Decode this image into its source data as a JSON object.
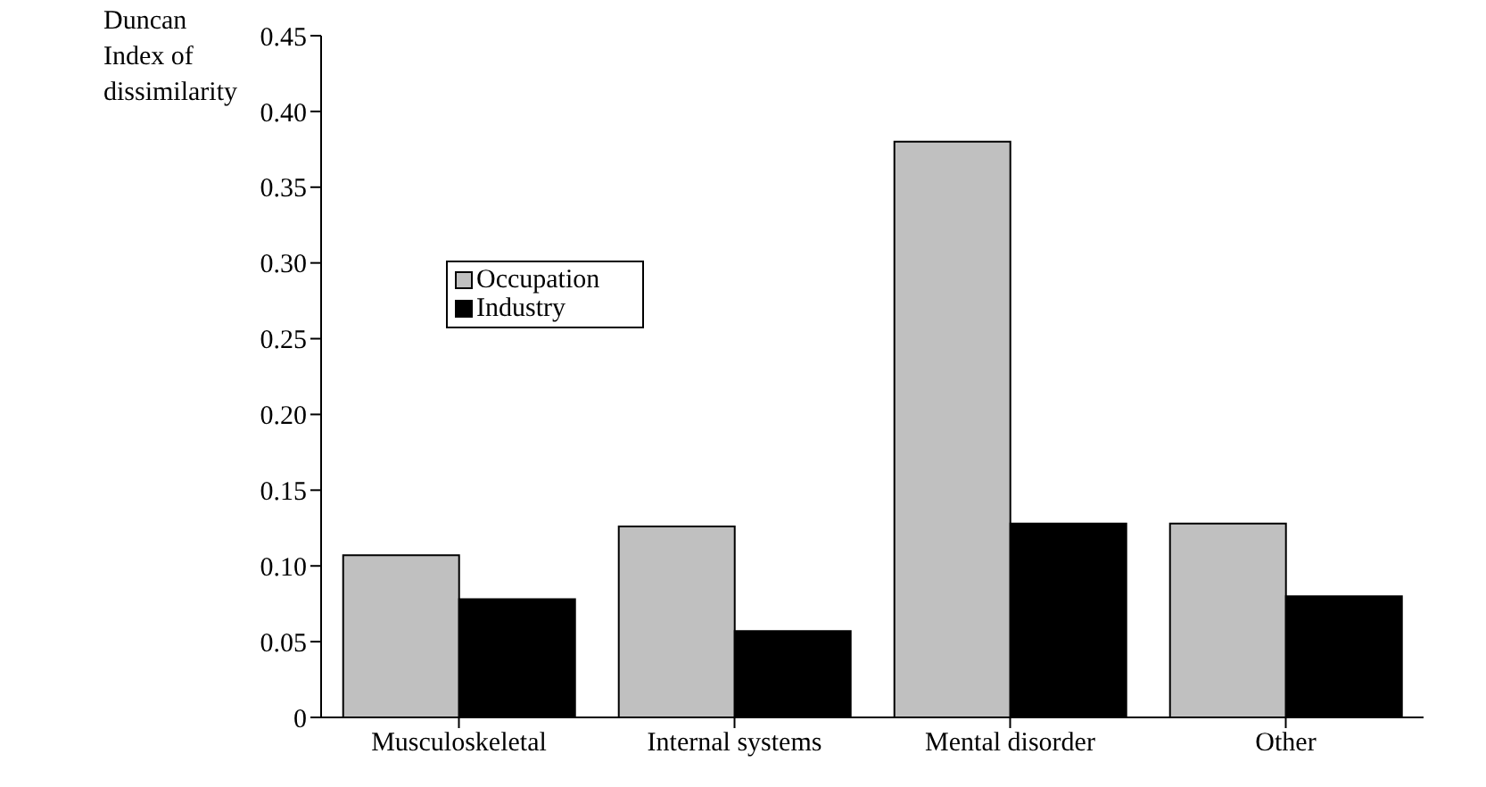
{
  "chart_data": {
    "type": "bar",
    "ylabel": "Duncan Index of dissimilarity",
    "categories": [
      "Musculoskeletal",
      "Internal systems",
      "Mental disorder",
      "Other"
    ],
    "series": [
      {
        "name": "Occupation",
        "color": "#c0c0c0",
        "values": [
          0.107,
          0.126,
          0.38,
          0.128
        ]
      },
      {
        "name": "Industry",
        "color": "#000000",
        "values": [
          0.078,
          0.057,
          0.128,
          0.08
        ]
      }
    ],
    "ylim": [
      0,
      0.45
    ],
    "yticks": [
      {
        "value": 0,
        "label": "0"
      },
      {
        "value": 0.05,
        "label": "0.05"
      },
      {
        "value": 0.1,
        "label": "0.10"
      },
      {
        "value": 0.15,
        "label": "0.15"
      },
      {
        "value": 0.2,
        "label": "0.20"
      },
      {
        "value": 0.25,
        "label": "0.25"
      },
      {
        "value": 0.3,
        "label": "0.30"
      },
      {
        "value": 0.35,
        "label": "0.35"
      },
      {
        "value": 0.4,
        "label": "0.40"
      },
      {
        "value": 0.45,
        "label": "0.45"
      }
    ],
    "grid": false,
    "legend": "left"
  }
}
